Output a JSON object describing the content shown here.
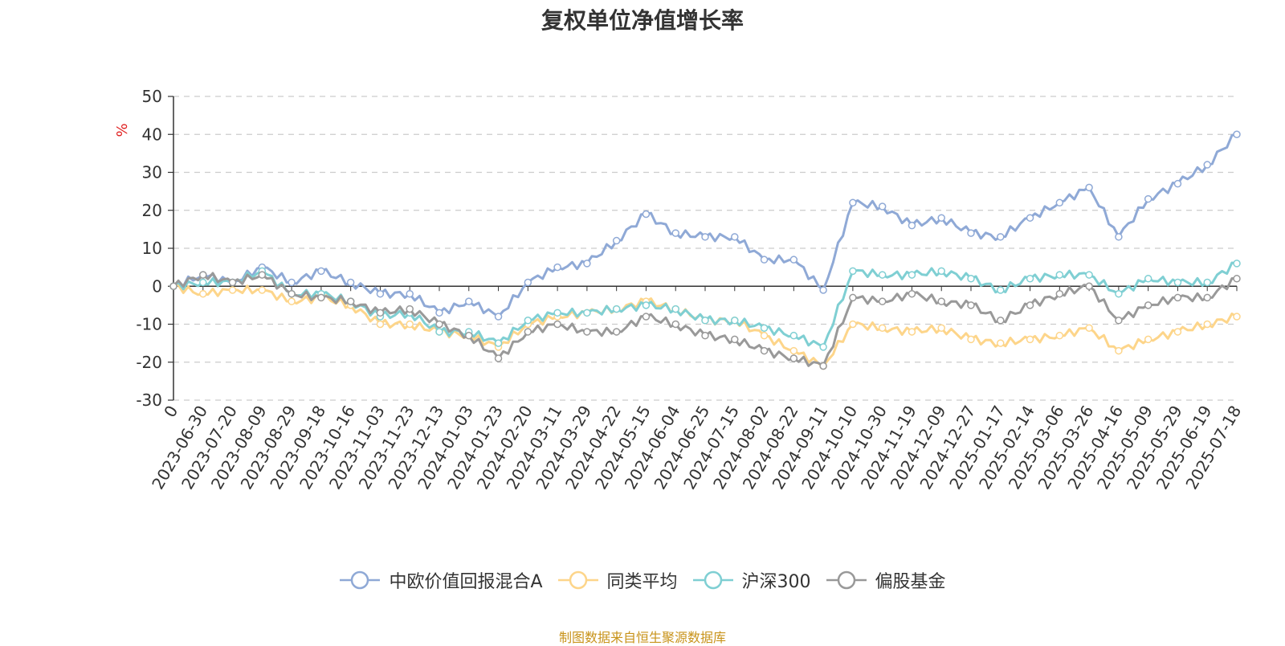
{
  "chart_data": {
    "type": "line",
    "title": "复权单位净值增长率",
    "ylabel": "%",
    "ylim": [
      -30,
      50
    ],
    "yticks": [
      -30,
      -20,
      -10,
      0,
      10,
      20,
      30,
      40,
      50
    ],
    "grid": true,
    "legend_position": "bottom",
    "x": [
      "0",
      "2023-06-30",
      "2023-07-20",
      "2023-08-09",
      "2023-08-29",
      "2023-09-18",
      "2023-10-16",
      "2023-11-03",
      "2023-11-23",
      "2023-12-13",
      "2024-01-03",
      "2024-01-23",
      "2024-02-20",
      "2024-03-11",
      "2024-03-29",
      "2024-04-22",
      "2024-05-15",
      "2024-06-04",
      "2024-06-25",
      "2024-07-15",
      "2024-08-02",
      "2024-08-22",
      "2024-09-11",
      "2024-10-10",
      "2024-10-30",
      "2024-11-19",
      "2024-12-09",
      "2024-12-27",
      "2025-01-17",
      "2025-02-14",
      "2025-03-06",
      "2025-03-26",
      "2025-04-16",
      "2025-05-09",
      "2025-05-29",
      "2025-06-19",
      "2025-07-18"
    ],
    "series": [
      {
        "name": "中欧价值回报混合A",
        "color": "#8fa9d6",
        "values": [
          0,
          3,
          1,
          5,
          1,
          4,
          1,
          -2,
          -2,
          -7,
          -4,
          -8,
          1,
          5,
          6,
          12,
          19,
          14,
          13,
          13,
          7,
          7,
          -1,
          22,
          21,
          16,
          18,
          14,
          13,
          18,
          22,
          26,
          13,
          23,
          27,
          32,
          40
        ]
      },
      {
        "name": "同类平均",
        "color": "#fdd58a",
        "values": [
          0,
          -2,
          -1,
          -1,
          -4,
          -3,
          -5,
          -10,
          -10,
          -12,
          -13,
          -16,
          -10,
          -8,
          -7,
          -6,
          -4,
          -6,
          -9,
          -9,
          -13,
          -17,
          -21,
          -10,
          -11,
          -12,
          -11,
          -14,
          -15,
          -14,
          -13,
          -11,
          -17,
          -14,
          -12,
          -10,
          -8
        ]
      },
      {
        "name": "沪深300",
        "color": "#7fcfd3",
        "values": [
          0,
          1,
          1,
          4,
          -2,
          -2,
          -4,
          -8,
          -7,
          -12,
          -12,
          -15,
          -9,
          -7,
          -7,
          -6,
          -5,
          -6,
          -9,
          -9,
          -11,
          -13,
          -16,
          4,
          3,
          3,
          4,
          2,
          -1,
          2,
          3,
          3,
          -2,
          2,
          1,
          1,
          6
        ]
      },
      {
        "name": "偏股基金",
        "color": "#999999",
        "values": [
          0,
          3,
          1,
          3,
          -2,
          -3,
          -4,
          -7,
          -6,
          -10,
          -13,
          -19,
          -12,
          -10,
          -12,
          -12,
          -8,
          -10,
          -13,
          -14,
          -17,
          -19,
          -21,
          -3,
          -4,
          -2,
          -4,
          -5,
          -9,
          -5,
          -2,
          0,
          -9,
          -5,
          -3,
          -3,
          2
        ]
      }
    ]
  },
  "source_note": "制图数据来自恒生聚源数据库"
}
